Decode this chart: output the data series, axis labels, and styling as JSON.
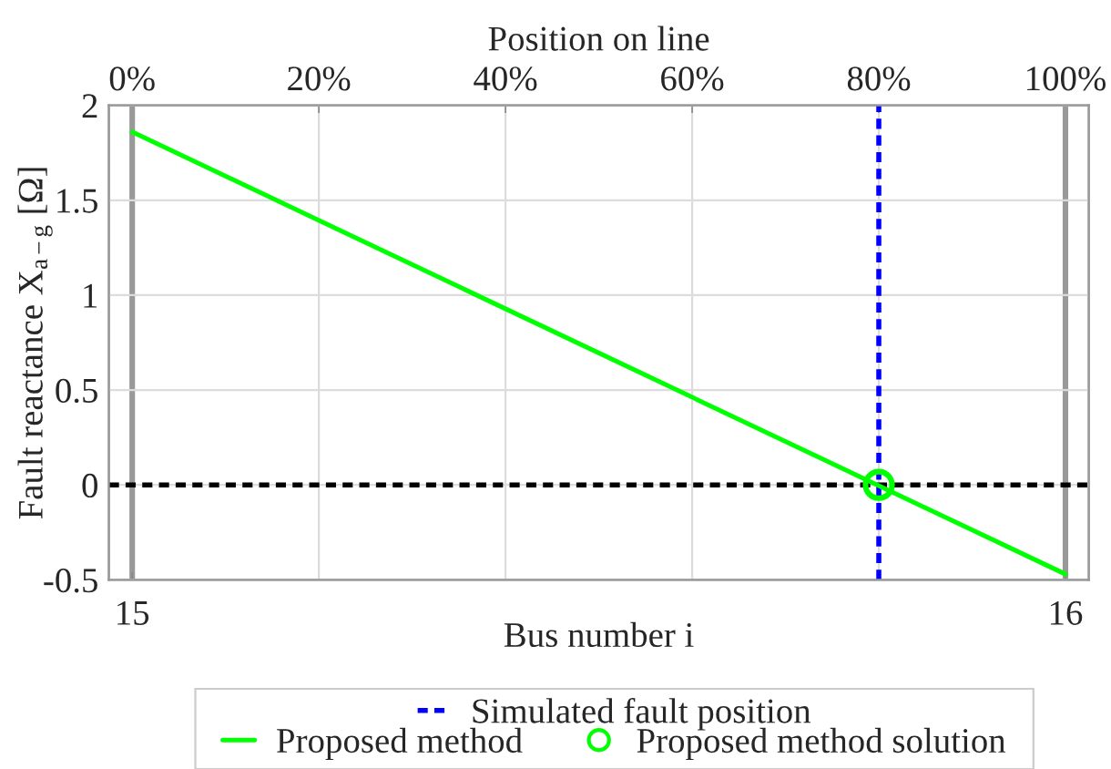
{
  "chart_data": {
    "type": "line",
    "xlabel": "Bus number i",
    "x2label": "Position on line",
    "ylabel": "Fault reactance X$_{a−g}$ [Ω]",
    "xlim": [
      14.975,
      16.025
    ],
    "xticks": [
      15,
      16
    ],
    "x2lim": [
      -2.5,
      102.5
    ],
    "x2ticks": [
      {
        "value": 0,
        "label": "0%"
      },
      {
        "value": 20,
        "label": "20%"
      },
      {
        "value": 40,
        "label": "40%"
      },
      {
        "value": 60,
        "label": "60%"
      },
      {
        "value": 80,
        "label": "80%"
      },
      {
        "value": 100,
        "label": "100%"
      }
    ],
    "ylim": [
      -0.5,
      2
    ],
    "yticks": [
      -0.5,
      0,
      0.5,
      1,
      1.5,
      2
    ],
    "grid": true,
    "legend": "bottom",
    "series": [
      {
        "name": "Proposed method",
        "color": "#00ff00",
        "x": [
          15,
          16
        ],
        "values": [
          1.86,
          -0.47
        ],
        "marker": "none",
        "line_style": "solid"
      },
      {
        "name": "Proposed method solution",
        "type": "scatter",
        "color": "#00ff00",
        "x": [
          15.8
        ],
        "values": [
          0
        ],
        "marker": "circle"
      }
    ],
    "ref_lines": [
      {
        "axis": "x",
        "value": 15.8,
        "label": "Simulated fault position",
        "color": "#0000ff",
        "line_style": "dashed"
      },
      {
        "axis": "y",
        "value": 0,
        "color": "#000000",
        "line_style": "dashed"
      }
    ]
  }
}
